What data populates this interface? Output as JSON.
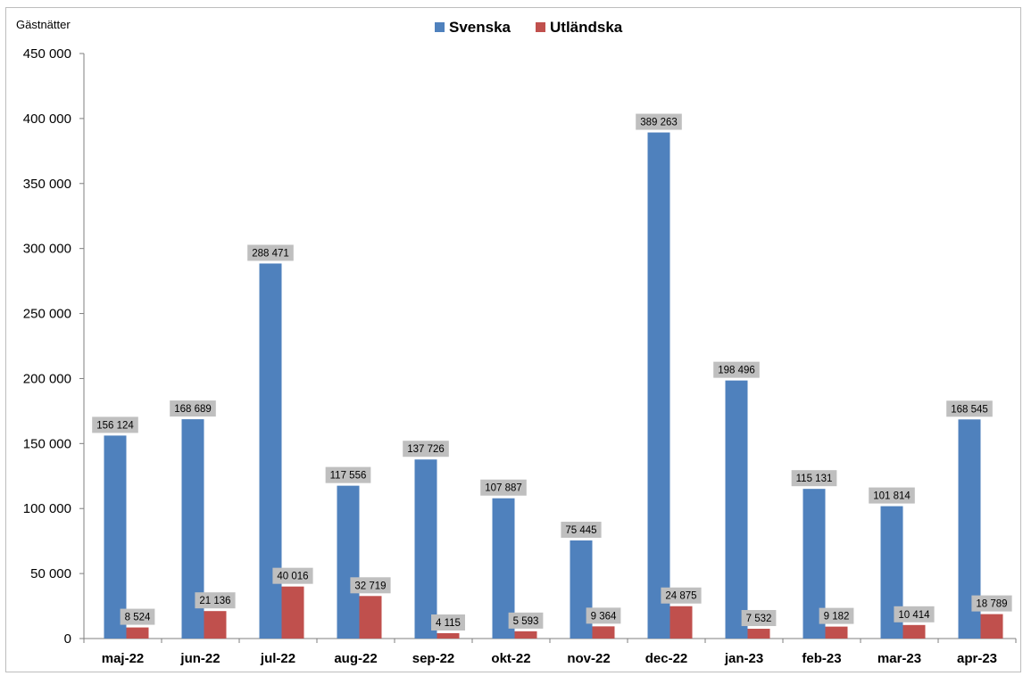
{
  "chart_data": {
    "type": "bar",
    "ylabel": "Gästnätter",
    "ylim": [
      0,
      450000
    ],
    "y_ticks": [
      0,
      50000,
      100000,
      150000,
      200000,
      250000,
      300000,
      350000,
      400000,
      450000
    ],
    "y_tick_labels": [
      "0",
      "50 000",
      "100 000",
      "150 000",
      "200 000",
      "250 000",
      "300 000",
      "350 000",
      "400 000",
      "450 000"
    ],
    "grid": false,
    "legend_position": "top-center",
    "categories": [
      "maj-22",
      "jun-22",
      "jul-22",
      "aug-22",
      "sep-22",
      "okt-22",
      "nov-22",
      "dec-22",
      "jan-23",
      "feb-23",
      "mar-23",
      "apr-23"
    ],
    "series": [
      {
        "name": "Svenska",
        "color": "#4f81bd",
        "values": [
          156124,
          168689,
          288471,
          117556,
          137726,
          107887,
          75445,
          389263,
          198496,
          115131,
          101814,
          168545
        ],
        "labels": [
          "156 124",
          "168 689",
          "288 471",
          "117 556",
          "137 726",
          "107 887",
          "75 445",
          "389 263",
          "198 496",
          "115 131",
          "101 814",
          "168 545"
        ]
      },
      {
        "name": "Utländska",
        "color": "#c0504d",
        "values": [
          8524,
          21136,
          40016,
          32719,
          4115,
          5593,
          9364,
          24875,
          7532,
          9182,
          10414,
          18789
        ],
        "labels": [
          "8 524",
          "21 136",
          "40 016",
          "32 719",
          "4 115",
          "5 593",
          "9 364",
          "24 875",
          "7 532",
          "9 182",
          "10 414",
          "18 789"
        ]
      }
    ],
    "data_label_background": "#bfbfbf"
  }
}
